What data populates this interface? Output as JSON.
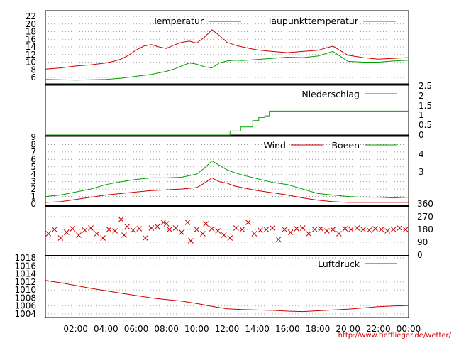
{
  "source_url": "http://www.tiefflieger.de/wetter/",
  "colors": {
    "red": "#cc0000",
    "green": "#00a000",
    "grid": "#8a8a8a",
    "frame": "#000000"
  },
  "x_ticks": [
    "02:00",
    "04:00",
    "06:00",
    "08:00",
    "10:00",
    "12:00",
    "14:00",
    "16:00",
    "18:00",
    "20:00",
    "22:00",
    "00:00"
  ],
  "chart_data": [
    {
      "type": "line",
      "x_range_hours": [
        0,
        24
      ],
      "ylim": [
        4,
        23
      ],
      "y_ticks": [
        6,
        8,
        10,
        12,
        14,
        16,
        18,
        20,
        22
      ],
      "grid": true,
      "legend_position": "top",
      "series": [
        {
          "name": "Temperatur",
          "color": "#cc0000",
          "x": [
            0,
            1,
            2,
            3,
            4,
            4.5,
            5,
            5.5,
            6,
            6.5,
            7,
            7.5,
            8,
            8.5,
            9,
            9.5,
            10,
            10.5,
            11,
            11.5,
            12,
            12.5,
            13,
            13.5,
            14,
            14.5,
            15,
            16,
            17,
            18,
            19,
            19.5,
            20,
            21,
            22,
            23,
            24
          ],
          "values": [
            8.2,
            8.5,
            9.0,
            9.3,
            9.8,
            10.2,
            10.8,
            11.8,
            13.2,
            14.2,
            14.6,
            14.0,
            13.6,
            14.5,
            15.2,
            15.5,
            15.0,
            16.5,
            18.5,
            17.0,
            15.2,
            14.5,
            14.0,
            13.6,
            13.2,
            13.0,
            12.8,
            12.5,
            12.8,
            13.1,
            14.2,
            13.0,
            11.8,
            11.2,
            10.8,
            11.0,
            11.2
          ]
        },
        {
          "name": "Taupunkttemperatur",
          "color": "#00a000",
          "x": [
            0,
            1,
            2,
            3,
            4,
            5,
            6,
            7,
            8,
            8.5,
            9,
            9.5,
            10,
            10.5,
            11,
            11.5,
            12,
            12.5,
            13,
            14,
            15,
            16,
            17,
            18,
            19,
            19.5,
            20,
            21,
            22,
            23,
            24
          ],
          "values": [
            5.5,
            5.4,
            5.3,
            5.4,
            5.5,
            5.8,
            6.3,
            6.8,
            7.6,
            8.2,
            9.0,
            9.8,
            9.5,
            8.8,
            8.5,
            9.8,
            10.3,
            10.5,
            10.4,
            10.7,
            11.0,
            11.3,
            11.2,
            11.6,
            12.8,
            11.5,
            10.2,
            10.0,
            10.0,
            10.3,
            10.5
          ]
        }
      ]
    },
    {
      "type": "line",
      "x_range_hours": [
        0,
        24
      ],
      "ylim": [
        0,
        2.5
      ],
      "y_ticks": [
        "2.5",
        "2",
        "1.5",
        "1",
        "0.5",
        "0"
      ],
      "grid": false,
      "legend_position": "top-right",
      "series": [
        {
          "name": "Niederschlag",
          "color": "#00a000",
          "x": [
            0,
            11.9,
            12.2,
            12.5,
            12.9,
            13.3,
            13.7,
            14.1,
            14.5,
            14.8,
            24
          ],
          "values": [
            0,
            0,
            0.25,
            0.25,
            0.5,
            0.5,
            0.9,
            1.1,
            1.2,
            1.5,
            1.5
          ]
        }
      ]
    },
    {
      "type": "line",
      "x_range_hours": [
        0,
        24
      ],
      "ylim": [
        0,
        9
      ],
      "y_ticks": [
        0,
        1,
        2,
        3,
        4,
        5,
        6,
        7,
        8,
        9
      ],
      "y2_ticks": [
        "4",
        "3"
      ],
      "grid": true,
      "legend_position": "top",
      "series": [
        {
          "name": "Wind",
          "color": "#cc0000",
          "x": [
            0,
            1,
            2,
            3,
            4,
            5,
            6,
            7,
            8,
            9,
            10,
            10.5,
            11,
            11.5,
            12,
            12.5,
            13,
            14,
            15,
            16,
            17,
            18,
            19,
            20,
            21,
            22,
            23,
            24
          ],
          "values": [
            0.2,
            0.3,
            0.6,
            0.9,
            1.2,
            1.4,
            1.6,
            1.8,
            1.9,
            2.0,
            2.2,
            2.8,
            3.5,
            3.0,
            2.8,
            2.4,
            2.2,
            1.8,
            1.5,
            1.2,
            0.8,
            0.5,
            0.3,
            0.2,
            0.2,
            0.2,
            0.2,
            0.2
          ]
        },
        {
          "name": "Boeen",
          "color": "#00a000",
          "x": [
            0,
            1,
            2,
            3,
            4,
            5,
            6,
            7,
            8,
            9,
            10,
            10.5,
            11,
            11.5,
            12,
            12.5,
            13,
            14,
            15,
            16,
            17,
            18,
            19,
            20,
            21,
            22,
            23,
            24
          ],
          "values": [
            1.0,
            1.2,
            1.6,
            2.0,
            2.6,
            3.0,
            3.3,
            3.5,
            3.5,
            3.6,
            4.0,
            4.8,
            5.8,
            5.2,
            4.6,
            4.2,
            3.9,
            3.4,
            2.9,
            2.6,
            2.0,
            1.4,
            1.2,
            1.0,
            0.9,
            0.9,
            0.8,
            0.9
          ]
        }
      ]
    },
    {
      "type": "scatter",
      "x_range_hours": [
        0,
        24
      ],
      "ylim": [
        0,
        360
      ],
      "y2_ticks": [
        360,
        270,
        180,
        90,
        0
      ],
      "grid": true,
      "series": [
        {
          "name": "",
          "color": "#cc0000",
          "marker": "x",
          "x": [
            0.2,
            0.6,
            1.0,
            1.4,
            1.8,
            2.2,
            2.6,
            3.0,
            3.4,
            3.8,
            4.2,
            4.6,
            5.0,
            5.2,
            5.4,
            5.8,
            6.2,
            6.6,
            7.0,
            7.4,
            7.8,
            8.0,
            8.2,
            8.6,
            9.0,
            9.4,
            9.6,
            10.0,
            10.4,
            10.6,
            11.0,
            11.4,
            11.8,
            12.2,
            12.6,
            13.0,
            13.4,
            13.8,
            14.2,
            14.6,
            15.0,
            15.4,
            15.8,
            16.2,
            16.6,
            17.0,
            17.4,
            17.8,
            18.2,
            18.6,
            19.0,
            19.4,
            19.8,
            20.2,
            20.6,
            21.0,
            21.4,
            21.8,
            22.2,
            22.6,
            23.0,
            23.4,
            23.8
          ],
          "values": [
            150,
            180,
            120,
            160,
            185,
            140,
            175,
            190,
            150,
            120,
            180,
            170,
            250,
            140,
            200,
            175,
            185,
            120,
            190,
            200,
            230,
            220,
            180,
            190,
            160,
            230,
            100,
            180,
            150,
            220,
            185,
            170,
            140,
            120,
            190,
            180,
            230,
            150,
            175,
            180,
            190,
            110,
            180,
            160,
            185,
            190,
            150,
            180,
            185,
            170,
            180,
            150,
            185,
            180,
            190,
            180,
            175,
            185,
            180,
            170,
            180,
            190,
            180
          ]
        }
      ]
    },
    {
      "type": "line",
      "x_range_hours": [
        0,
        24
      ],
      "ylim": [
        1003.5,
        1020
      ],
      "y_ticks": [
        1004,
        1006,
        1008,
        1010,
        1012,
        1014,
        1016,
        1018
      ],
      "grid": true,
      "legend_position": "top-right",
      "series": [
        {
          "name": "Luftdruck",
          "color": "#cc0000",
          "x": [
            0,
            1,
            2,
            3,
            4,
            5,
            6,
            7,
            8,
            9,
            10,
            11,
            12,
            13,
            14,
            15,
            16,
            17,
            18,
            19,
            20,
            21,
            22,
            23,
            24
          ],
          "values": [
            1012.4,
            1011.8,
            1011.1,
            1010.4,
            1009.8,
            1009.2,
            1008.6,
            1008.0,
            1007.6,
            1007.2,
            1006.6,
            1005.9,
            1005.3,
            1005.1,
            1005.0,
            1004.9,
            1004.7,
            1004.6,
            1004.8,
            1005.0,
            1005.2,
            1005.5,
            1005.8,
            1006.0,
            1006.1
          ]
        }
      ]
    }
  ]
}
